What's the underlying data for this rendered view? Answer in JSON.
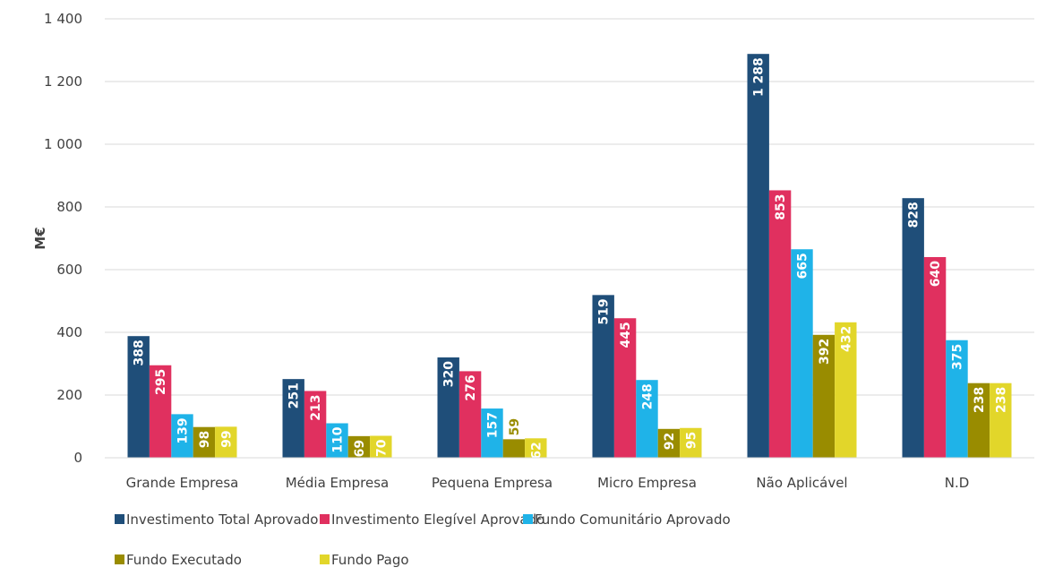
{
  "chart_data": {
    "type": "bar",
    "y_label": "M€",
    "categories": [
      "Grande Empresa",
      "Média Empresa",
      "Pequena Empresa",
      "Micro Empresa",
      "Não Aplicável",
      "N.D"
    ],
    "series": [
      {
        "name": "Investimento Total Aprovado",
        "color": "#1f4e79",
        "values": [
          388,
          251,
          320,
          519,
          1288,
          828
        ],
        "value_labels": [
          "388",
          "251",
          "320",
          "519",
          "1 288",
          "828"
        ]
      },
      {
        "name": "Investimento Elegível Aprovado",
        "color": "#e0305f",
        "values": [
          295,
          213,
          276,
          445,
          853,
          640
        ]
      },
      {
        "name": "Fundo Comunitário Aprovado",
        "color": "#1fb3e8",
        "values": [
          139,
          110,
          157,
          248,
          665,
          375
        ]
      },
      {
        "name": "Fundo Executado",
        "color": "#998c00",
        "values": [
          98,
          69,
          59,
          92,
          392,
          238
        ]
      },
      {
        "name": "Fundo Pago",
        "color": "#e2d62a",
        "values": [
          99,
          70,
          62,
          95,
          432,
          238
        ]
      }
    ],
    "ylim": [
      0,
      1400
    ],
    "yticks": [
      0,
      200,
      400,
      600,
      800,
      {
        "value": 1000,
        "label": "1 000"
      },
      {
        "value": 1200,
        "label": "1 200"
      },
      {
        "value": 1400,
        "label": "1 400"
      }
    ],
    "grid": true,
    "legend": "bottom"
  }
}
